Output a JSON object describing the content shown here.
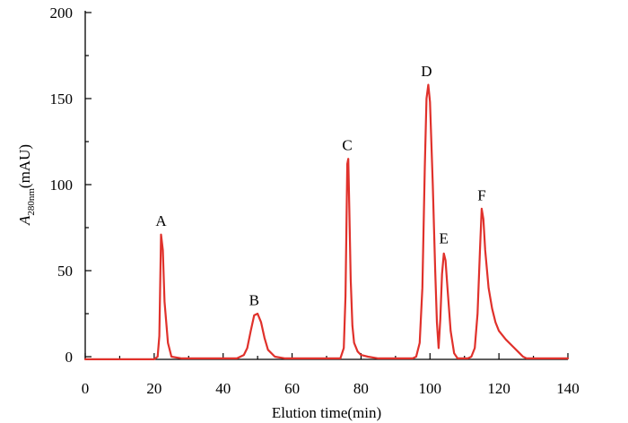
{
  "chart_data": {
    "type": "line",
    "xlabel": "Elution time(min)",
    "ylabel": {
      "main": "A",
      "subscript": "280nm",
      "suffix": "(mAU)"
    },
    "xlim": [
      0,
      140
    ],
    "ylim": [
      0,
      200
    ],
    "x_ticks": [
      0,
      20,
      40,
      60,
      80,
      100,
      120,
      140
    ],
    "y_ticks": [
      0,
      50,
      100,
      150,
      200
    ],
    "grid": false,
    "color": "#e0312b",
    "series": [
      {
        "x": [
          0,
          5,
          10,
          15,
          18,
          20,
          21,
          21.5,
          22,
          22.5,
          23,
          24,
          25,
          28,
          30,
          32,
          35,
          38,
          40,
          42,
          44,
          46,
          47,
          48,
          49,
          50,
          51,
          52,
          53,
          55,
          58,
          62,
          66,
          70,
          72,
          74,
          75,
          75.5,
          76,
          76.3,
          76.6,
          77,
          77.5,
          78,
          79,
          80,
          82,
          85,
          88,
          90,
          93,
          95,
          96,
          97,
          97.8,
          98.5,
          99,
          99.5,
          100,
          100.8,
          101.5,
          102,
          102.5,
          103,
          103.5,
          104,
          104.5,
          105,
          106,
          107,
          108,
          109,
          110,
          111,
          112,
          113,
          113.8,
          114.5,
          115,
          115.5,
          116,
          117,
          118,
          119,
          120,
          122,
          124,
          126,
          127,
          128,
          130,
          135,
          140
        ],
        "y": [
          -1.5,
          -1.5,
          -1.5,
          -1.5,
          -1.5,
          -1.5,
          0,
          12,
          71,
          62,
          32,
          8,
          0,
          -1,
          -1,
          -1,
          -1,
          -1,
          -1,
          -1,
          -1,
          1,
          5,
          15,
          24,
          25,
          20,
          11,
          4,
          0,
          -1,
          -1,
          -1,
          -1,
          -1,
          -1,
          5,
          35,
          112,
          115,
          85,
          45,
          18,
          8,
          3,
          1,
          0,
          -1,
          -1,
          -1,
          -1,
          -1,
          0,
          8,
          40,
          110,
          150,
          158,
          148,
          100,
          50,
          20,
          5,
          22,
          48,
          60,
          56,
          42,
          15,
          2,
          -1,
          -1,
          -1,
          -1,
          0,
          5,
          25,
          62,
          86,
          80,
          62,
          40,
          28,
          20,
          15,
          10,
          6,
          2,
          0,
          -1,
          -1,
          -1,
          -1
        ]
      }
    ],
    "annotations": [
      {
        "text": "A",
        "x": 22,
        "y": 76
      },
      {
        "text": "B",
        "x": 49,
        "y": 30
      },
      {
        "text": "C",
        "x": 76,
        "y": 120
      },
      {
        "text": "D",
        "x": 99,
        "y": 163
      },
      {
        "text": "E",
        "x": 104,
        "y": 66
      },
      {
        "text": "F",
        "x": 115,
        "y": 91
      }
    ]
  }
}
